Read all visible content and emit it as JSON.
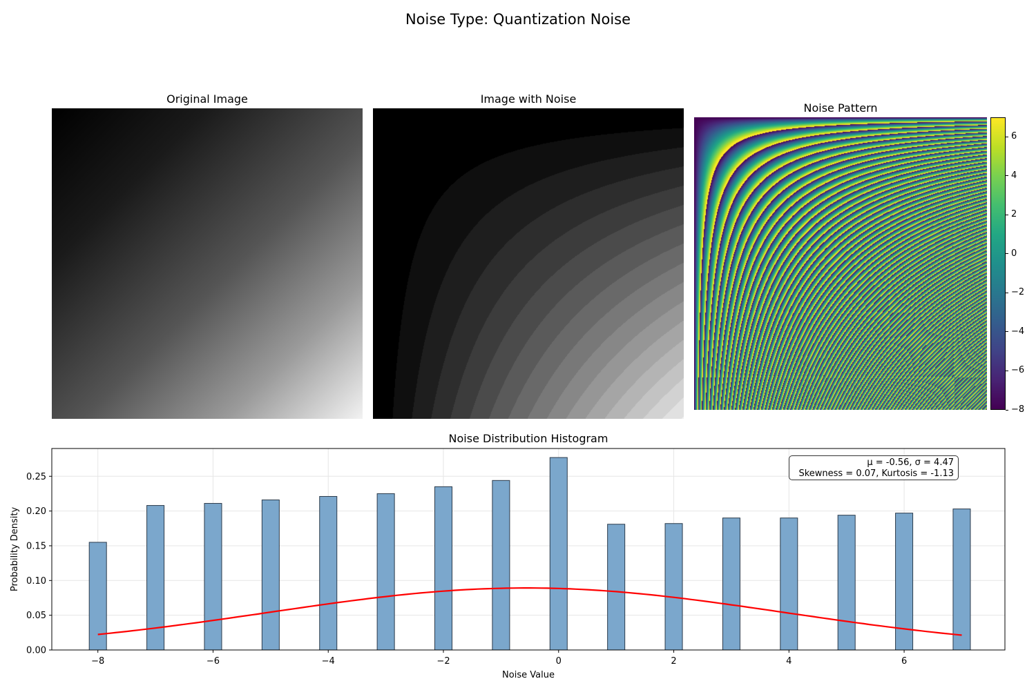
{
  "suptitle": "Noise Type: Quantization Noise",
  "panels": {
    "original_title": "Original Image",
    "noise_title": "Image with Noise",
    "pattern_title": "Noise Pattern"
  },
  "colorbar": {
    "ticks": [
      "6",
      "4",
      "2",
      "0",
      "−2",
      "−4",
      "−6",
      "−8"
    ],
    "tick_values": [
      6,
      4,
      2,
      0,
      -2,
      -4,
      -6,
      -8
    ],
    "range": [
      -8,
      7
    ],
    "colormap": "viridis"
  },
  "chart_data": {
    "type": "bar",
    "title": "Noise Distribution Histogram",
    "xlabel": "Noise Value",
    "ylabel": "Probability Density",
    "x": [
      -8,
      -7,
      -6,
      -5,
      -4,
      -3,
      -2,
      -1,
      0,
      1,
      2,
      3,
      4,
      5,
      6,
      7
    ],
    "values": [
      0.155,
      0.208,
      0.211,
      0.216,
      0.221,
      0.225,
      0.235,
      0.244,
      0.277,
      0.181,
      0.182,
      0.19,
      0.19,
      0.194,
      0.197,
      0.203
    ],
    "xlim": [
      -8.8,
      7.75
    ],
    "ylim": [
      0,
      0.29
    ],
    "xticks": [
      -8,
      -6,
      -4,
      -2,
      0,
      2,
      4,
      6
    ],
    "xtick_labels": [
      "−8",
      "−6",
      "−4",
      "−2",
      "0",
      "2",
      "4",
      "6"
    ],
    "yticks": [
      0.0,
      0.05,
      0.1,
      0.15,
      0.2,
      0.25
    ],
    "ytick_labels": [
      "0.00",
      "0.05",
      "0.10",
      "0.15",
      "0.20",
      "0.25"
    ],
    "grid": true,
    "bar_color": "#7ba7cc",
    "fit_curve": {
      "type": "normal",
      "mu": -0.56,
      "sigma": 4.47,
      "color": "#ff0000"
    },
    "stats_line1": "μ = -0.56, σ = 4.47",
    "stats_line2": "Skewness = 0.07, Kurtosis = -1.13"
  }
}
